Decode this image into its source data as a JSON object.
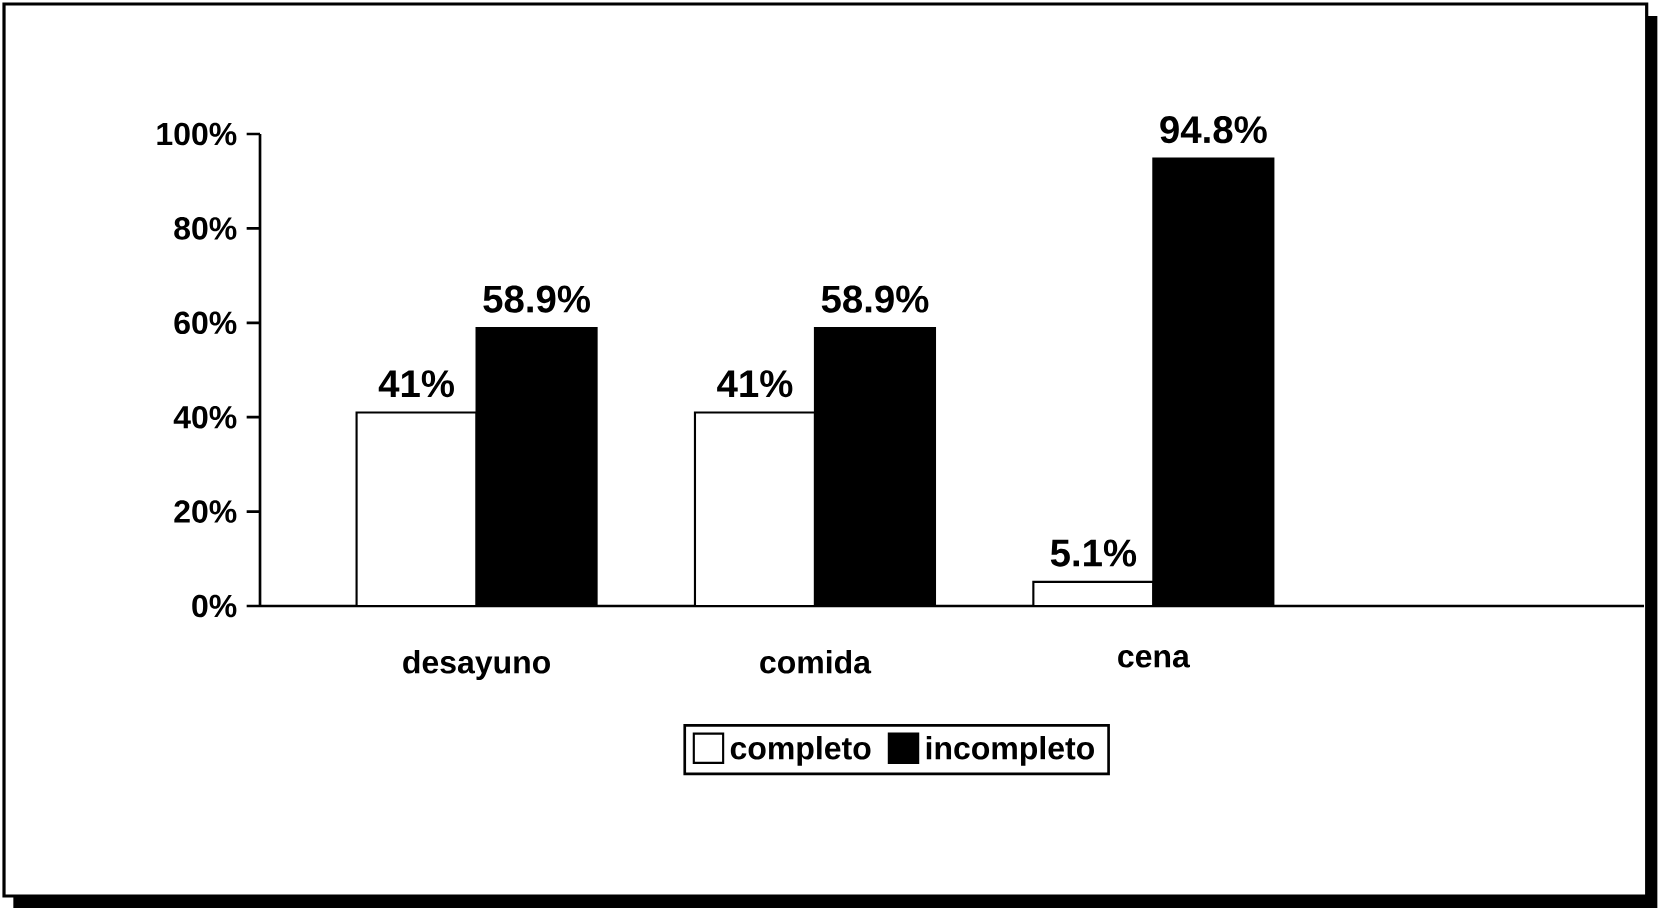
{
  "chart_data": {
    "type": "bar",
    "categories": [
      "desayuno",
      "comida",
      "cena"
    ],
    "series": [
      {
        "name": "completo",
        "color": "#ffffff",
        "values": [
          41,
          41,
          5.1
        ],
        "value_labels": [
          "41%",
          "41%",
          "5.1%"
        ]
      },
      {
        "name": "incompleto",
        "color": "#000000",
        "values": [
          58.9,
          58.9,
          94.8
        ],
        "value_labels": [
          "58.9%",
          "58.9%",
          "94.8%"
        ]
      }
    ],
    "ylim": [
      0,
      100
    ],
    "yticks": [
      {
        "value": 0,
        "label": "0%"
      },
      {
        "value": 20,
        "label": "20%"
      },
      {
        "value": 40,
        "label": "40%"
      },
      {
        "value": 60,
        "label": "60%"
      },
      {
        "value": 80,
        "label": "80%"
      },
      {
        "value": 100,
        "label": "100%"
      }
    ],
    "legend": "bottom",
    "grid": false
  }
}
